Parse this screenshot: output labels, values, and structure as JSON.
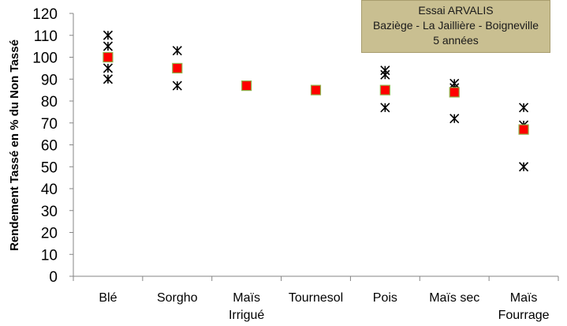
{
  "chart_data": {
    "type": "scatter",
    "title": "",
    "xlabel": "",
    "ylabel": "Rendement Tassé en % du Non Tassé",
    "ylim": [
      0,
      120
    ],
    "ytick_step": 10,
    "grid": false,
    "categories": [
      [
        "Blé"
      ],
      [
        "Sorgho"
      ],
      [
        "Maïs",
        "Irrigué"
      ],
      [
        "Tournesol"
      ],
      [
        "Pois"
      ],
      [
        "Maïs sec"
      ],
      [
        "Maïs",
        "Fourrage"
      ]
    ],
    "series": [
      {
        "marker": "asterisk",
        "color": "#000000",
        "points": [
          [
            0,
            110
          ],
          [
            0,
            105
          ],
          [
            0,
            95
          ],
          [
            0,
            90
          ],
          [
            1,
            103
          ],
          [
            1,
            87
          ],
          [
            4,
            94
          ],
          [
            4,
            92
          ],
          [
            4,
            77
          ],
          [
            5,
            88
          ],
          [
            5,
            86
          ],
          [
            5,
            72
          ],
          [
            6,
            77
          ],
          [
            6,
            69
          ],
          [
            6,
            50
          ]
        ]
      },
      {
        "marker": "square",
        "color": "#ff0000",
        "edge_color": "#8fb04a",
        "points": [
          [
            0,
            100
          ],
          [
            1,
            95
          ],
          [
            2,
            87
          ],
          [
            3,
            85
          ],
          [
            4,
            85
          ],
          [
            5,
            84
          ],
          [
            6,
            67
          ]
        ]
      }
    ]
  },
  "annotation": {
    "lines": [
      "Essai ARVALIS",
      "Baziège - La Jaillière - Boigneville",
      "5 années"
    ]
  }
}
